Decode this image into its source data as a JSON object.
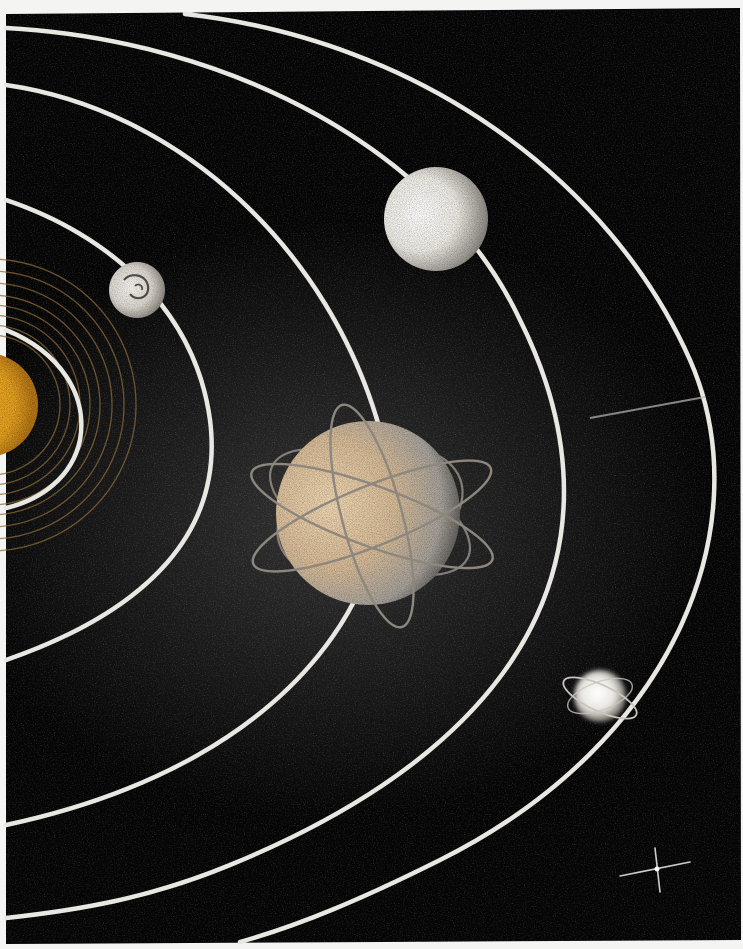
{
  "illustration": {
    "subject_icon": "solar-system-illustration",
    "colors": {
      "space": "#050505",
      "paper_border": "#f4f4f2",
      "orbit": "#e9e7e2",
      "sun": "#e6a21f",
      "sun_rays": "#8c6a3a",
      "planet_light": "#f5f3ee",
      "planet_warm": "#d8bd98",
      "planet_shadow": "#7f7a73"
    },
    "elements": [
      {
        "name": "sun",
        "icon": "sun-icon"
      },
      {
        "name": "small-moon",
        "icon": "planet-icon"
      },
      {
        "name": "white-planet",
        "icon": "planet-icon"
      },
      {
        "name": "ringed-planet",
        "icon": "atom-planet-icon"
      },
      {
        "name": "small-ringed-planet",
        "icon": "planet-icon"
      },
      {
        "name": "sparkle-star",
        "icon": "star-icon"
      }
    ]
  }
}
